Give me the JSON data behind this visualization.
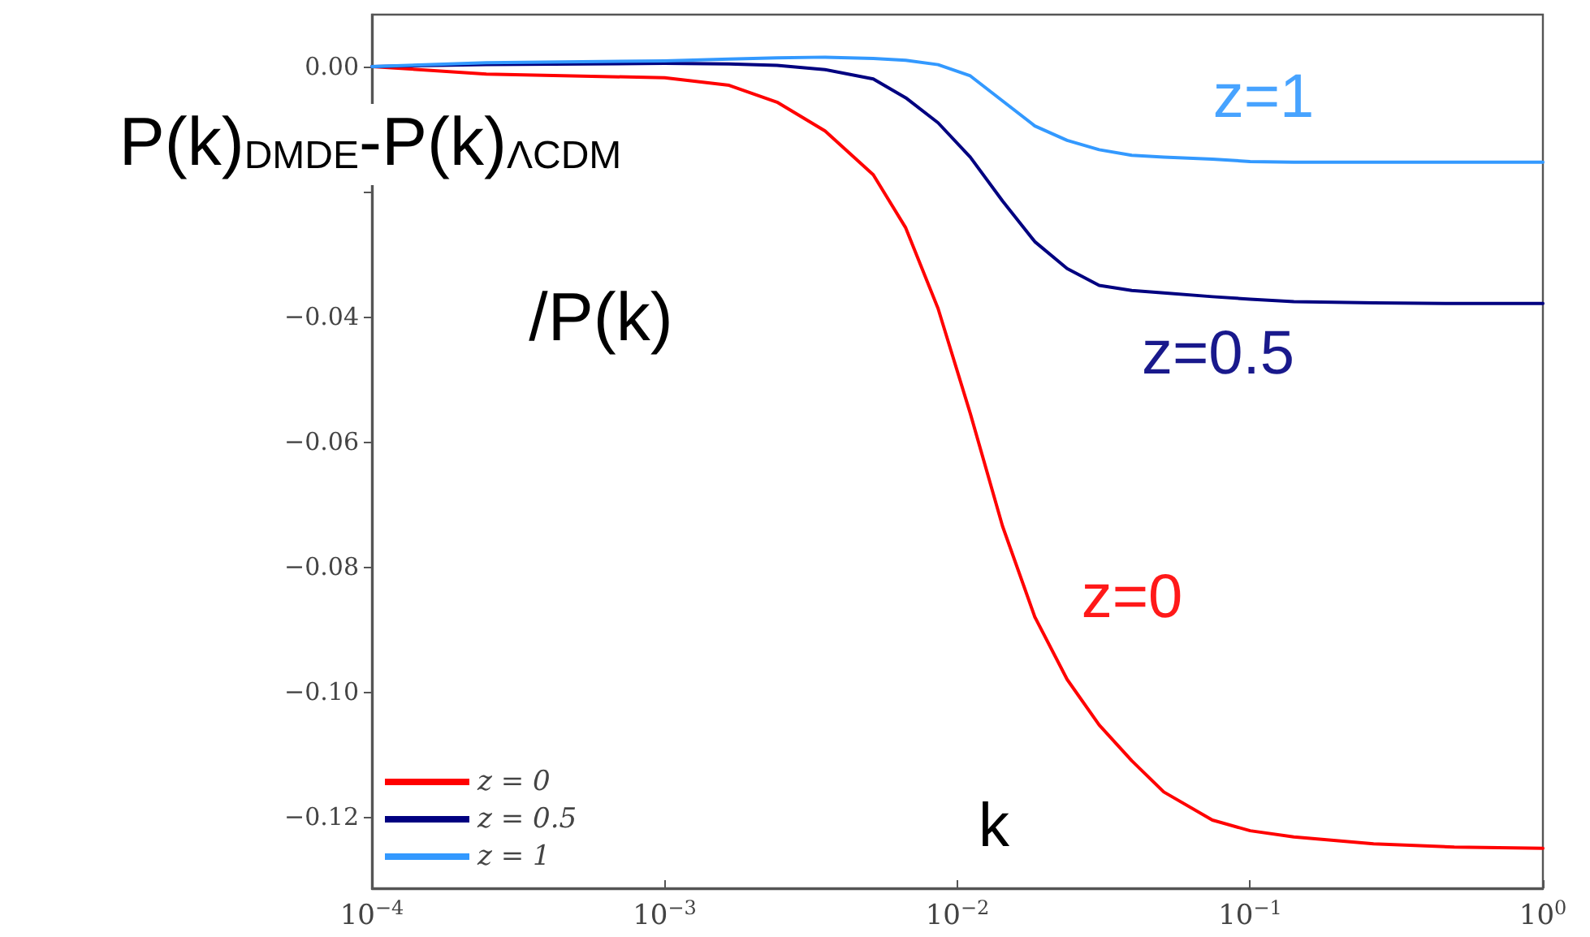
{
  "chart_data": {
    "type": "line",
    "xlabel": "k",
    "ylabel": "P(k)$_{DMDE}$-P(k)$_{ΛCDM}$\n/P(k)",
    "log": "x",
    "xlim": [
      0.0001,
      1
    ],
    "xticks": [
      {
        "value": 0.0001,
        "label": "10$^{−4}$"
      },
      {
        "value": 0.001,
        "label": "10$^{−3}$"
      },
      {
        "value": 0.01,
        "label": "10$^{−2}$"
      },
      {
        "value": 0.1,
        "label": "10$^{−1}$"
      },
      {
        "value": 1,
        "label": "10$^{0}$"
      }
    ],
    "ylim": [
      -0.1314,
      0.0083
    ],
    "yticks": [
      {
        "value": -0.12,
        "label": "−0.12"
      },
      {
        "value": -0.1,
        "label": "−0.10"
      },
      {
        "value": -0.08,
        "label": "−0.08"
      },
      {
        "value": -0.06,
        "label": "−0.06"
      },
      {
        "value": -0.04,
        "label": "−0.04"
      },
      {
        "value": -0.02,
        "label": null
      },
      {
        "value": 0,
        "label": "0.00"
      }
    ],
    "grid": false,
    "legend": "bottom left",
    "marker": "none",
    "line_style": "solid",
    "x": [
      0.0001,
      0.000246,
      0.001,
      0.00166,
      0.00242,
      0.00353,
      0.00516,
      0.00666,
      0.00859,
      0.01107,
      0.01426,
      0.01838,
      0.0237,
      0.0305,
      0.0394,
      0.0507,
      0.0743,
      0.1,
      0.141,
      0.264,
      0.498,
      1
    ],
    "series": [
      {
        "name": "z = 0",
        "color": "#ff0000",
        "values": [
          0,
          -0.0012,
          -0.0018,
          -0.003,
          -0.0057,
          -0.0103,
          -0.0173,
          -0.0258,
          -0.0387,
          -0.0555,
          -0.0735,
          -0.088,
          -0.098,
          -0.1053,
          -0.111,
          -0.116,
          -0.1205,
          -0.1222,
          -0.1232,
          -0.1243,
          -0.1248,
          -0.125
        ]
      },
      {
        "name": "z = 0.5",
        "color": "#000080",
        "values": [
          0,
          0.0003,
          0.0005,
          0.0004,
          0.0002,
          -0.0005,
          -0.002,
          -0.005,
          -0.009,
          -0.0145,
          -0.0215,
          -0.028,
          -0.0323,
          -0.035,
          -0.0358,
          -0.0362,
          -0.0368,
          -0.0372,
          -0.0376,
          -0.0378,
          -0.0379,
          -0.0379
        ]
      },
      {
        "name": "z = 1",
        "color": "#3399ff",
        "values": [
          0,
          0.0006,
          0.0009,
          0.0012,
          0.0014,
          0.0015,
          0.0013,
          0.001,
          0.0003,
          -0.0015,
          -0.0055,
          -0.0095,
          -0.0118,
          -0.0133,
          -0.0142,
          -0.0145,
          -0.0148,
          -0.0152,
          -0.0153,
          -0.0153,
          -0.0153,
          -0.0153
        ]
      }
    ],
    "annotations": [
      "z=0",
      "z=0.5",
      "z=1"
    ]
  }
}
